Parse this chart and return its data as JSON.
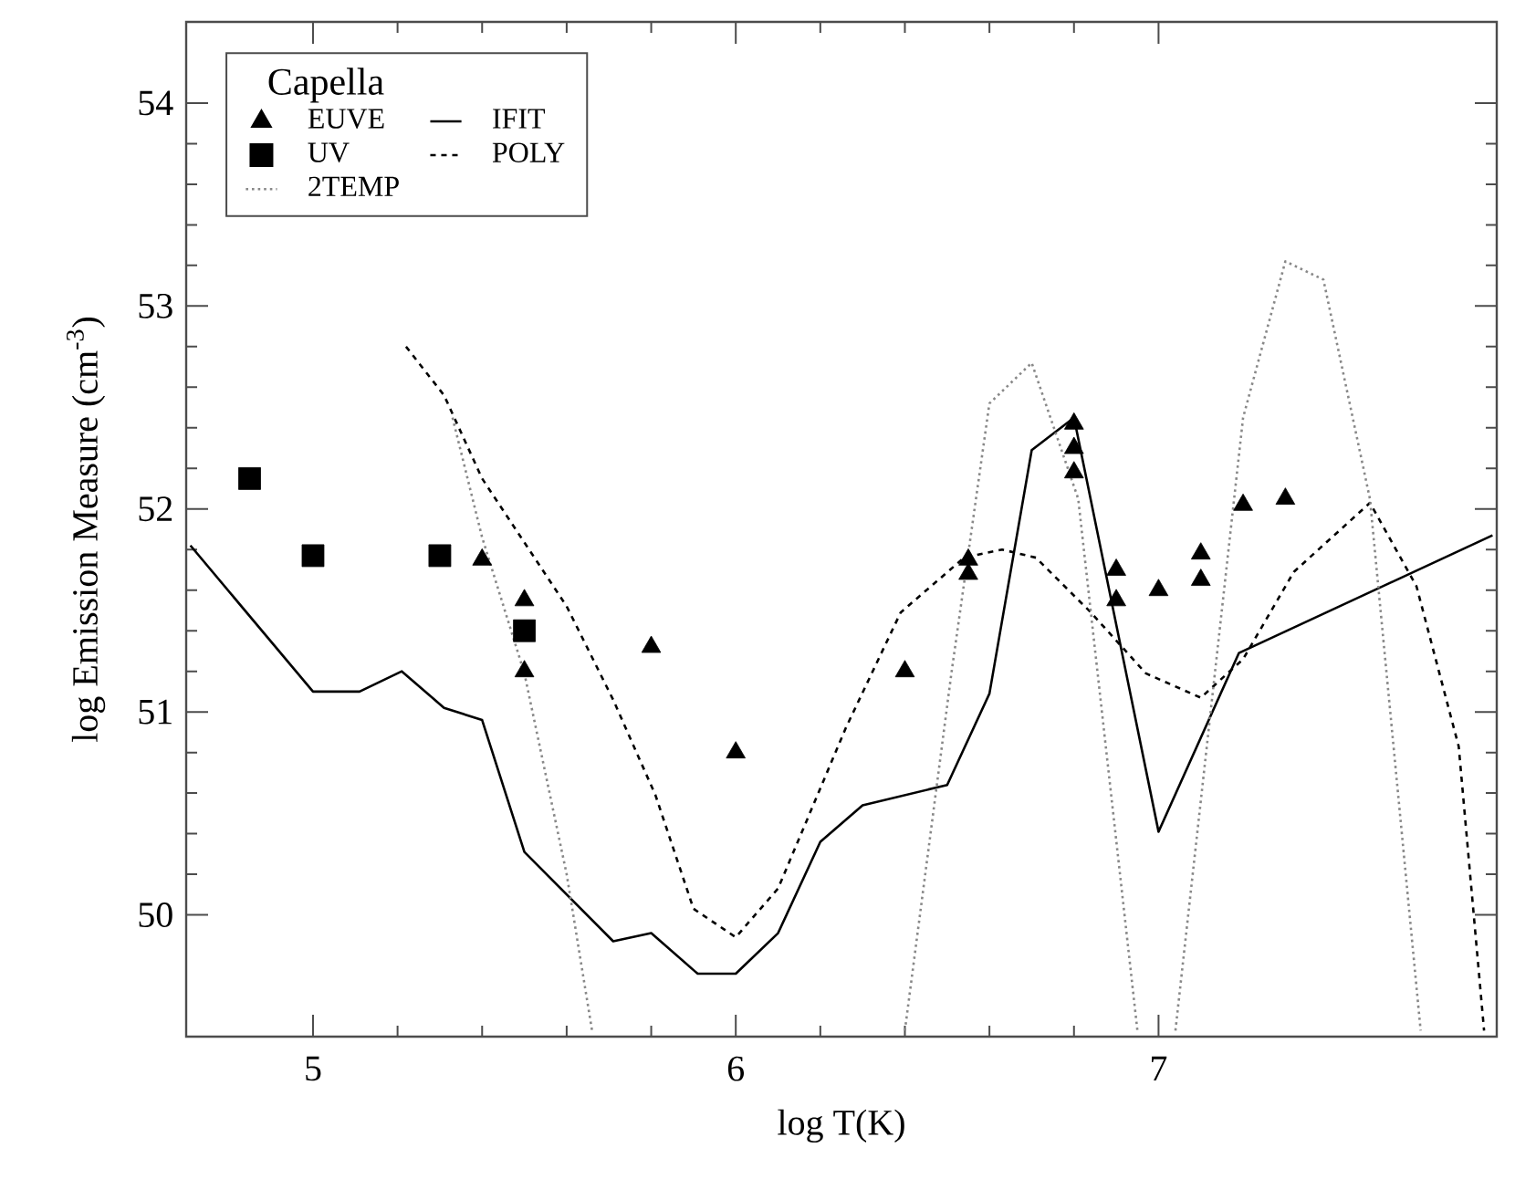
{
  "chart_data": {
    "type": "line",
    "xlabel": "log T(K)",
    "ylabel": "log Emission Measure (cm$^{-3}$)",
    "legend_title": "Capella",
    "legend": "top left",
    "xlim": [
      4.7,
      7.8
    ],
    "ylim": [
      49.4,
      54.4
    ],
    "xticks": [
      5,
      6,
      7
    ],
    "yticks": [
      50,
      51,
      52,
      53,
      54
    ],
    "grid": false,
    "series": [
      {
        "name": "EUVE",
        "type": "scatter",
        "marker": "triangle",
        "color": "#000000",
        "x": [
          5.4,
          5.5,
          5.5,
          5.8,
          6.0,
          6.4,
          6.55,
          6.55,
          6.8,
          6.8,
          6.8,
          6.9,
          6.9,
          7.0,
          7.1,
          7.1,
          7.2,
          7.3
        ],
        "values": [
          51.75,
          51.55,
          51.2,
          51.32,
          50.8,
          51.2,
          51.75,
          51.68,
          52.42,
          52.3,
          52.18,
          51.7,
          51.55,
          51.6,
          51.78,
          51.65,
          52.02,
          52.05
        ]
      },
      {
        "name": "IFIT",
        "line_style": "solid",
        "color": "#000000",
        "x": [
          4.71,
          5.0,
          5.11,
          5.21,
          5.31,
          5.4,
          5.5,
          5.71,
          5.8,
          5.91,
          6.0,
          6.1,
          6.2,
          6.3,
          6.5,
          6.6,
          6.7,
          6.8,
          7.0,
          7.19,
          7.79
        ],
        "values": [
          51.82,
          51.1,
          51.1,
          51.2,
          51.02,
          50.96,
          50.31,
          49.87,
          49.91,
          49.71,
          49.71,
          49.91,
          50.36,
          50.54,
          50.64,
          51.09,
          52.29,
          52.45,
          50.41,
          51.29,
          51.87
        ]
      },
      {
        "name": "UV",
        "type": "scatter",
        "marker": "square",
        "color": "#000000",
        "x": [
          4.85,
          5.0,
          5.3,
          5.5
        ],
        "values": [
          52.15,
          51.77,
          51.77,
          51.4
        ]
      },
      {
        "name": "POLY",
        "line_style": "dashed",
        "color": "#000000",
        "x": [
          5.22,
          5.31,
          5.4,
          5.6,
          5.71,
          5.81,
          5.9,
          6.0,
          6.1,
          6.26,
          6.39,
          6.54,
          6.63,
          6.71,
          6.84,
          6.97,
          7.1,
          7.2,
          7.32,
          7.5,
          7.61,
          7.71,
          7.77
        ],
        "values": [
          52.8,
          52.56,
          52.15,
          51.52,
          51.06,
          50.59,
          50.03,
          49.89,
          50.13,
          50.92,
          51.49,
          51.76,
          51.8,
          51.76,
          51.49,
          51.19,
          51.07,
          51.26,
          51.69,
          52.03,
          51.62,
          50.83,
          49.43
        ]
      },
      {
        "name": "2TEMP",
        "line_style": "dotted",
        "color": "#888888",
        "x": [
          5.33,
          5.4,
          5.5,
          5.6,
          5.66,
          6.03,
          6.4,
          6.51,
          6.6,
          6.7,
          6.81,
          6.95,
          7.0,
          7.04,
          7.2,
          7.3,
          7.39,
          7.5,
          7.62
        ],
        "values": [
          52.45,
          51.86,
          51.19,
          50.2,
          49.43,
          null,
          49.43,
          51.19,
          52.52,
          52.72,
          52.05,
          49.43,
          null,
          49.43,
          52.45,
          53.22,
          53.13,
          52.05,
          49.43
        ]
      }
    ]
  }
}
